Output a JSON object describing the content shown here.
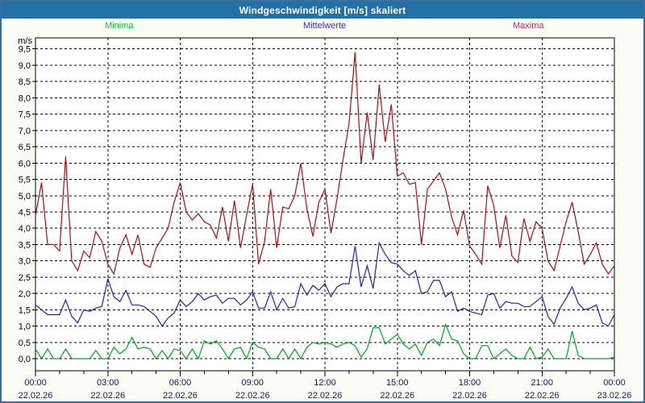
{
  "window": {
    "title": "Windgeschwindigkeit [m/s] skaliert"
  },
  "legend": [
    {
      "label": "Minima",
      "color": "#00c62a"
    },
    {
      "label": "Mittelwerte",
      "color": "#2d2de0"
    },
    {
      "label": "Maxima",
      "color": "#c62950"
    }
  ],
  "axis": {
    "unit_label": "m/s",
    "y_step": 0.5,
    "y_tick_labels": [
      "0,0",
      "0,5",
      "1,0",
      "1,5",
      "2,0",
      "2,5",
      "3,0",
      "3,5",
      "4,0",
      "4,5",
      "5,0",
      "5,5",
      "6,0",
      "6,5",
      "7,0",
      "7,5",
      "8,0",
      "8,5",
      "9,0",
      "9,5"
    ],
    "x_ticks": [
      {
        "hour": 0,
        "time": "00:00",
        "date": "22.02.26"
      },
      {
        "hour": 3,
        "time": "03:00",
        "date": "22.02.26"
      },
      {
        "hour": 6,
        "time": "06:00",
        "date": "22.02.26"
      },
      {
        "hour": 9,
        "time": "09:00",
        "date": "22.02.26"
      },
      {
        "hour": 12,
        "time": "12:00",
        "date": "22.02.26"
      },
      {
        "hour": 15,
        "time": "15:00",
        "date": "22.02.26"
      },
      {
        "hour": 18,
        "time": "18:00",
        "date": "22.02.26"
      },
      {
        "hour": 21,
        "time": "21:00",
        "date": "22.02.26"
      },
      {
        "hour": 24,
        "time": "00:00",
        "date": "23.02.26"
      }
    ]
  },
  "chart_data": {
    "type": "line",
    "title": "Windgeschwindigkeit [m/s] skaliert",
    "xlabel": "",
    "ylabel": "m/s",
    "ylim": [
      0,
      9.5
    ],
    "grid": true,
    "legend_position": "top",
    "x_start_hour": 0,
    "x_step_hours": 0.25,
    "x_range_hours": [
      0,
      24
    ],
    "series": [
      {
        "name": "Minima",
        "color": "#00a81e",
        "values": [
          0.3,
          0.0,
          0.3,
          0.0,
          0.0,
          0.3,
          0.0,
          0.0,
          0.0,
          0.0,
          0.25,
          0.0,
          0.0,
          0.35,
          0.15,
          0.3,
          0.65,
          0.3,
          0.35,
          0.3,
          0.0,
          0.25,
          0.0,
          0.3,
          0.25,
          0.0,
          0.3,
          0.0,
          0.55,
          0.45,
          0.55,
          0.3,
          0.0,
          0.3,
          0.35,
          0.0,
          0.5,
          0.35,
          0.3,
          0.0,
          0.0,
          0.3,
          0.0,
          0.3,
          0.0,
          0.35,
          0.5,
          0.45,
          0.5,
          0.45,
          0.35,
          0.45,
          0.5,
          0.4,
          0.05,
          0.3,
          0.95,
          0.95,
          0.45,
          0.6,
          0.75,
          0.45,
          0.3,
          0.45,
          0.1,
          0.5,
          0.6,
          0.4,
          1.05,
          0.6,
          0.55,
          0.15,
          0.0,
          0.0,
          0.4,
          0.4,
          0.0,
          0.15,
          0.3,
          0.1,
          0.0,
          0.0,
          0.35,
          0.0,
          0.05,
          0.3,
          0.0,
          0.0,
          0.0,
          0.85,
          0.1,
          0.0,
          0.0,
          0.0,
          0.0,
          0.0,
          0.05
        ]
      },
      {
        "name": "Mittelwerte",
        "color": "#2323b8",
        "values": [
          1.65,
          1.5,
          1.35,
          1.35,
          1.35,
          1.8,
          1.3,
          1.1,
          1.5,
          1.45,
          1.55,
          1.6,
          2.45,
          1.9,
          1.75,
          2.1,
          1.65,
          1.65,
          1.6,
          1.45,
          1.3,
          1.0,
          1.25,
          1.4,
          1.8,
          1.6,
          1.75,
          2.0,
          1.8,
          1.9,
          1.95,
          1.7,
          1.85,
          1.85,
          1.65,
          1.8,
          2.05,
          1.55,
          1.55,
          2.05,
          1.5,
          1.85,
          1.55,
          1.6,
          2.3,
          1.95,
          2.25,
          2.1,
          2.3,
          1.9,
          2.2,
          2.3,
          2.3,
          3.45,
          2.2,
          2.85,
          2.15,
          3.55,
          3.2,
          2.95,
          2.9,
          2.7,
          2.55,
          2.7,
          2.0,
          2.05,
          2.4,
          2.4,
          1.9,
          2.05,
          1.45,
          1.55,
          1.45,
          1.4,
          1.35,
          1.95,
          2.0,
          1.55,
          1.75,
          1.7,
          1.7,
          1.6,
          1.6,
          1.75,
          1.9,
          1.3,
          1.05,
          1.55,
          1.85,
          2.2,
          1.7,
          1.5,
          1.55,
          1.65,
          1.1,
          1.0,
          1.35
        ]
      },
      {
        "name": "Maxima",
        "color": "#a81114",
        "values": [
          4.4,
          5.4,
          3.5,
          3.5,
          3.3,
          6.2,
          3.0,
          2.7,
          3.3,
          3.1,
          3.9,
          3.6,
          2.9,
          2.6,
          3.4,
          3.8,
          3.2,
          3.8,
          2.9,
          2.8,
          3.4,
          3.7,
          4.0,
          4.8,
          5.4,
          4.5,
          4.25,
          4.45,
          4.2,
          4.1,
          3.7,
          4.65,
          3.6,
          4.85,
          3.4,
          4.4,
          5.35,
          2.9,
          3.6,
          5.2,
          3.4,
          4.65,
          4.6,
          5.0,
          6.0,
          4.6,
          3.75,
          4.8,
          5.2,
          3.85,
          4.9,
          6.1,
          7.2,
          9.4,
          6.0,
          7.55,
          6.1,
          8.4,
          6.65,
          7.8,
          5.6,
          5.7,
          5.35,
          5.4,
          3.5,
          5.2,
          5.45,
          5.7,
          5.2,
          4.35,
          3.8,
          4.55,
          3.45,
          3.2,
          2.9,
          5.3,
          4.7,
          3.4,
          4.4,
          3.15,
          2.95,
          4.3,
          3.6,
          4.2,
          4.0,
          3.0,
          2.7,
          3.45,
          4.2,
          4.8,
          3.9,
          2.9,
          3.2,
          3.55,
          2.9,
          2.6,
          2.85
        ]
      }
    ]
  }
}
